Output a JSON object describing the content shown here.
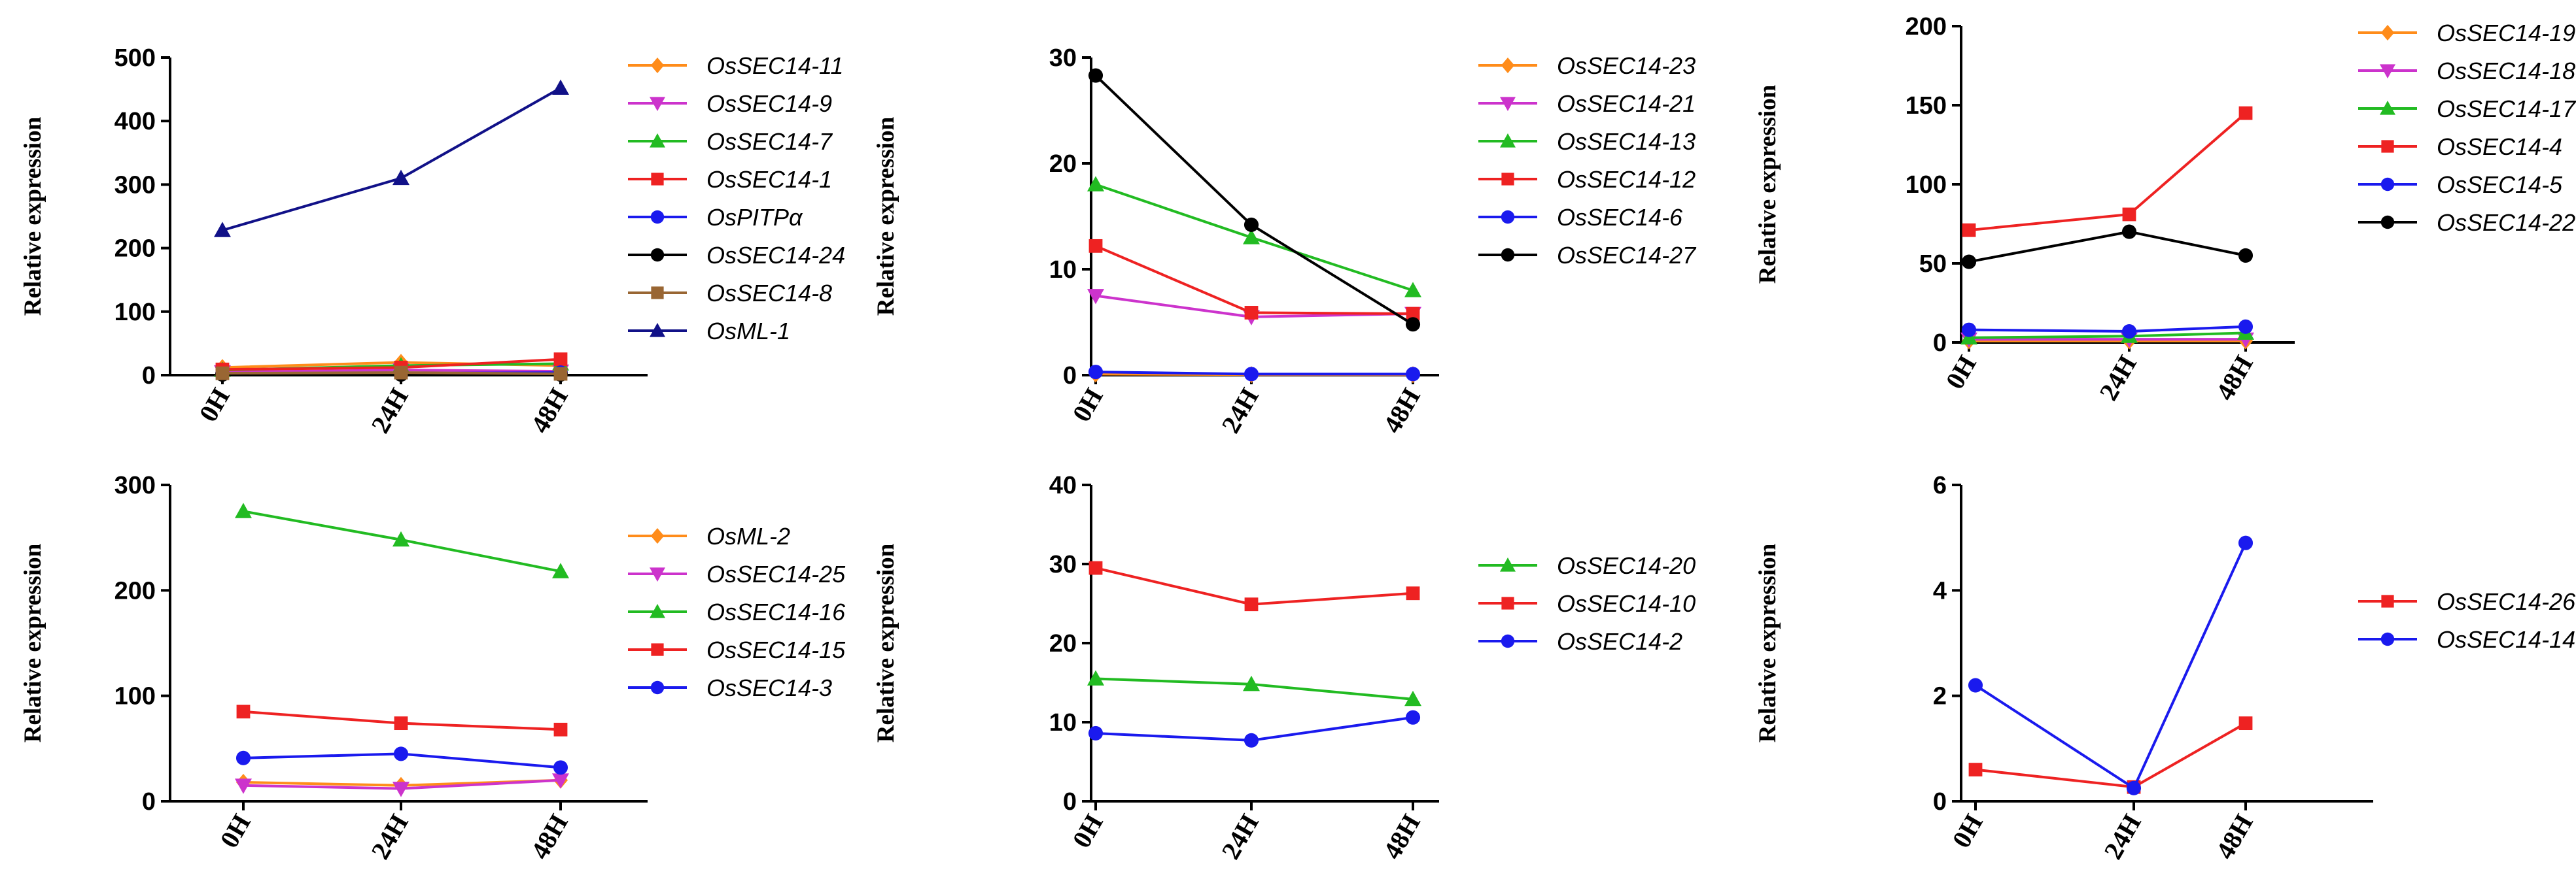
{
  "chart_data": [
    {
      "type": "line",
      "ylabel": "Relative expression",
      "categories": [
        "0H",
        "24H",
        "48H"
      ],
      "ylim": [
        0,
        500
      ],
      "yticks": [
        0,
        100,
        200,
        300,
        400,
        500
      ],
      "series": [
        {
          "name": "OsSEC14-11",
          "color": "#ff8c1a",
          "marker": "diamond",
          "values": [
            12,
            20,
            15
          ]
        },
        {
          "name": "OsSEC14-9",
          "color": "#cc33cc",
          "marker": "triangle-down",
          "values": [
            5,
            8,
            6
          ]
        },
        {
          "name": "OsSEC14-7",
          "color": "#22bb22",
          "marker": "triangle-up",
          "values": [
            8,
            15,
            18
          ]
        },
        {
          "name": "OsSEC14-1",
          "color": "#ee2222",
          "marker": "square",
          "values": [
            9,
            12,
            25
          ]
        },
        {
          "name": "OsPITPα",
          "color": "#1a1aee",
          "marker": "circle",
          "values": [
            2,
            3,
            4
          ]
        },
        {
          "name": "OsSEC14-24",
          "color": "#000000",
          "marker": "circle",
          "values": [
            1,
            1,
            1
          ]
        },
        {
          "name": "OsSEC14-8",
          "color": "#996633",
          "marker": "square",
          "values": [
            3,
            4,
            2
          ]
        },
        {
          "name": "OsML-1",
          "color": "#111188",
          "marker": "triangle-up",
          "values": [
            228,
            310,
            452
          ]
        }
      ]
    },
    {
      "type": "line",
      "ylabel": "Relative expression",
      "categories": [
        "0H",
        "24H",
        "48H"
      ],
      "ylim": [
        0,
        30
      ],
      "yticks": [
        0,
        10,
        20,
        30
      ],
      "series": [
        {
          "name": "OsSEC14-23",
          "color": "#ff8c1a",
          "marker": "diamond",
          "values": [
            0.1,
            0.05,
            0.05
          ]
        },
        {
          "name": "OsSEC14-21",
          "color": "#cc33cc",
          "marker": "triangle-down",
          "values": [
            7.5,
            5.5,
            5.8
          ]
        },
        {
          "name": "OsSEC14-13",
          "color": "#22bb22",
          "marker": "triangle-up",
          "values": [
            18,
            13,
            8
          ]
        },
        {
          "name": "OsSEC14-12",
          "color": "#ee2222",
          "marker": "square",
          "values": [
            12.2,
            5.9,
            5.8
          ]
        },
        {
          "name": "OsSEC14-6",
          "color": "#1a1aee",
          "marker": "circle",
          "values": [
            0.3,
            0.1,
            0.1
          ]
        },
        {
          "name": "OsSEC14-27",
          "color": "#000000",
          "marker": "circle",
          "values": [
            28.3,
            14.2,
            4.8
          ]
        }
      ]
    },
    {
      "type": "line",
      "ylabel": "Relative expression",
      "categories": [
        "0H",
        "24H",
        "48H"
      ],
      "ylim": [
        0,
        200
      ],
      "yticks": [
        0,
        50,
        100,
        150,
        200
      ],
      "series": [
        {
          "name": "OsSEC14-19",
          "color": "#ff8c1a",
          "marker": "diamond",
          "values": [
            1,
            1,
            1
          ]
        },
        {
          "name": "OsSEC14-18",
          "color": "#cc33cc",
          "marker": "triangle-down",
          "values": [
            2,
            2,
            2
          ]
        },
        {
          "name": "OsSEC14-17",
          "color": "#22bb22",
          "marker": "triangle-up",
          "values": [
            3,
            4,
            6
          ]
        },
        {
          "name": "OsSEC14-4",
          "color": "#ee2222",
          "marker": "square",
          "values": [
            71,
            81,
            145
          ]
        },
        {
          "name": "OsSEC14-5",
          "color": "#1a1aee",
          "marker": "circle",
          "values": [
            8,
            7,
            10
          ]
        },
        {
          "name": "OsSEC14-22",
          "color": "#000000",
          "marker": "circle",
          "values": [
            51,
            70,
            55
          ]
        }
      ]
    },
    {
      "type": "line",
      "ylabel": "Relative expression",
      "categories": [
        "0H",
        "24H",
        "48H"
      ],
      "ylim": [
        0,
        300
      ],
      "yticks": [
        0,
        100,
        200,
        300
      ],
      "series": [
        {
          "name": "OsML-2",
          "color": "#ff8c1a",
          "marker": "diamond",
          "values": [
            18,
            15,
            20
          ]
        },
        {
          "name": "OsSEC14-25",
          "color": "#cc33cc",
          "marker": "triangle-down",
          "values": [
            15,
            12,
            20
          ]
        },
        {
          "name": "OsSEC14-16",
          "color": "#22bb22",
          "marker": "triangle-up",
          "values": [
            275,
            248,
            218
          ]
        },
        {
          "name": "OsSEC14-15",
          "color": "#ee2222",
          "marker": "square",
          "values": [
            85,
            74,
            68
          ]
        },
        {
          "name": "OsSEC14-3",
          "color": "#1a1aee",
          "marker": "circle",
          "values": [
            41,
            45,
            32
          ]
        }
      ]
    },
    {
      "type": "line",
      "ylabel": "Relative expression",
      "categories": [
        "0H",
        "24H",
        "48H"
      ],
      "ylim": [
        0,
        40
      ],
      "yticks": [
        0,
        10,
        20,
        30,
        40
      ],
      "series": [
        {
          "name": "OsSEC14-20",
          "color": "#22bb22",
          "marker": "triangle-up",
          "values": [
            15.5,
            14.8,
            12.9
          ]
        },
        {
          "name": "OsSEC14-10",
          "color": "#ee2222",
          "marker": "square",
          "values": [
            29.5,
            24.9,
            26.3
          ]
        },
        {
          "name": "OsSEC14-2",
          "color": "#1a1aee",
          "marker": "circle",
          "values": [
            8.6,
            7.7,
            10.6
          ]
        }
      ]
    },
    {
      "type": "line",
      "ylabel": "Relative expression",
      "categories": [
        "0H",
        "24H",
        "48H"
      ],
      "ylim": [
        0,
        6
      ],
      "yticks": [
        0,
        2,
        4,
        6
      ],
      "series": [
        {
          "name": "OsSEC14-26",
          "color": "#ee2222",
          "marker": "square",
          "values": [
            0.6,
            0.27,
            1.48
          ]
        },
        {
          "name": "OsSEC14-14",
          "color": "#1a1aee",
          "marker": "circle",
          "values": [
            2.2,
            0.25,
            4.9
          ]
        }
      ]
    }
  ]
}
